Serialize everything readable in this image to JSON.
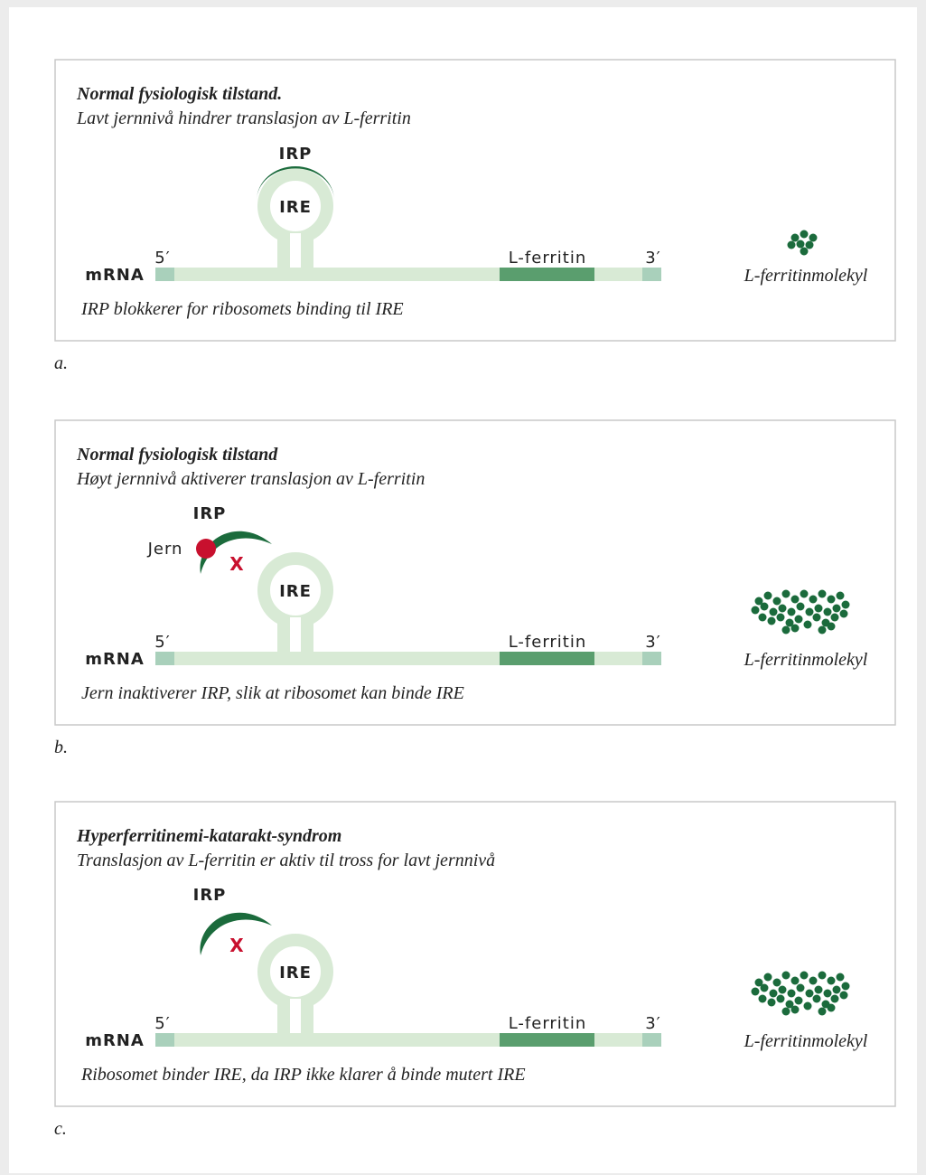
{
  "panels": [
    {
      "title": "Normal fysiologisk tilstand.",
      "subtitle": "Lavt jernnivå hindrer translasjon av L-ferritin",
      "irp": "IRP",
      "ire": "IRE",
      "five_prime": "5′",
      "mrna": "mRNA",
      "gene": "L-ferritin",
      "three_prime": "3′",
      "molecule": "L-ferritinmolekyl",
      "caption": "IRP blokkerer for ribosomets binding til IRE",
      "letter": "a."
    },
    {
      "title": "Normal fysiologisk tilstand",
      "subtitle": "Høyt jernnivå aktiverer translasjon av L-ferritin",
      "irp": "IRP",
      "jern": "Jern",
      "blocked": "X",
      "ire": "IRE",
      "five_prime": "5′",
      "mrna": "mRNA",
      "gene": "L-ferritin",
      "three_prime": "3′",
      "molecule": "L-ferritinmolekyl",
      "caption": "Jern inaktiverer IRP, slik at ribosomet kan binde IRE",
      "letter": "b."
    },
    {
      "title": "Hyperferritinemi-katarakt-syndrom",
      "subtitle": "Translasjon av L-ferritin er aktiv til tross for lavt jernnivå",
      "irp": "IRP",
      "blocked": "X",
      "ire": "IRE",
      "five_prime": "5′",
      "mrna": "mRNA",
      "gene": "L-ferritin",
      "three_prime": "3′",
      "molecule": "L-ferritinmolekyl",
      "caption": "Ribosomet binder IRE, da IRP ikke klarer å binde mutert IRE",
      "letter": "c."
    }
  ]
}
